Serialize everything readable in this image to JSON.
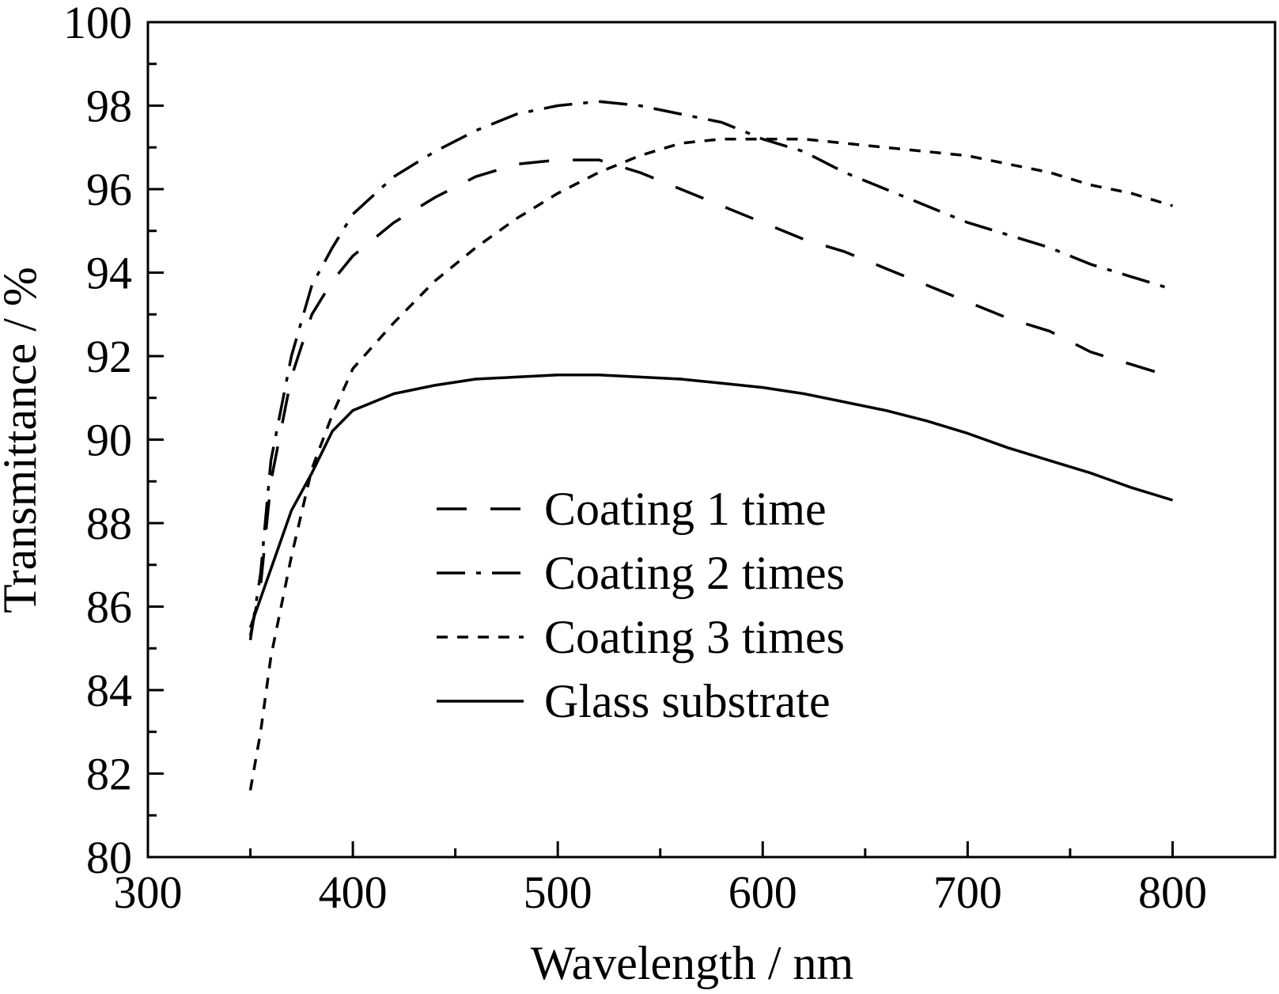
{
  "chart_data": {
    "type": "line",
    "title": "",
    "xlabel": "Wavelength / nm",
    "ylabel": "Transmittance / %",
    "xlim": [
      300,
      850
    ],
    "ylim": [
      80,
      100
    ],
    "x_ticks": [
      300,
      400,
      500,
      600,
      700,
      800
    ],
    "y_ticks": [
      80,
      82,
      84,
      86,
      88,
      90,
      92,
      94,
      96,
      98,
      100
    ],
    "grid": false,
    "legend_position": "center",
    "series": [
      {
        "name": "Coating 1 time",
        "dash": "long-dash",
        "points": [
          [
            350,
            85.3
          ],
          [
            355,
            86.5
          ],
          [
            360,
            89.0
          ],
          [
            370,
            91.5
          ],
          [
            380,
            93.0
          ],
          [
            390,
            93.8
          ],
          [
            400,
            94.4
          ],
          [
            420,
            95.2
          ],
          [
            440,
            95.8
          ],
          [
            460,
            96.3
          ],
          [
            480,
            96.6
          ],
          [
            500,
            96.7
          ],
          [
            520,
            96.7
          ],
          [
            540,
            96.4
          ],
          [
            560,
            96.0
          ],
          [
            580,
            95.6
          ],
          [
            600,
            95.2
          ],
          [
            620,
            94.8
          ],
          [
            640,
            94.5
          ],
          [
            660,
            94.1
          ],
          [
            680,
            93.7
          ],
          [
            700,
            93.3
          ],
          [
            720,
            92.9
          ],
          [
            740,
            92.6
          ],
          [
            760,
            92.1
          ],
          [
            780,
            91.8
          ],
          [
            800,
            91.5
          ]
        ]
      },
      {
        "name": "Coating 2 times",
        "dash": "dash-dot",
        "points": [
          [
            350,
            85.2
          ],
          [
            355,
            86.8
          ],
          [
            360,
            89.5
          ],
          [
            370,
            92.0
          ],
          [
            380,
            93.7
          ],
          [
            390,
            94.6
          ],
          [
            400,
            95.4
          ],
          [
            420,
            96.3
          ],
          [
            440,
            96.9
          ],
          [
            460,
            97.4
          ],
          [
            480,
            97.8
          ],
          [
            500,
            98.0
          ],
          [
            520,
            98.1
          ],
          [
            540,
            98.0
          ],
          [
            560,
            97.8
          ],
          [
            580,
            97.6
          ],
          [
            600,
            97.2
          ],
          [
            620,
            96.9
          ],
          [
            640,
            96.4
          ],
          [
            660,
            96.0
          ],
          [
            680,
            95.6
          ],
          [
            700,
            95.2
          ],
          [
            720,
            94.9
          ],
          [
            740,
            94.6
          ],
          [
            760,
            94.2
          ],
          [
            780,
            93.9
          ],
          [
            800,
            93.6
          ]
        ]
      },
      {
        "name": "Coating 3 times",
        "dash": "short-dash",
        "points": [
          [
            350,
            81.6
          ],
          [
            355,
            83.0
          ],
          [
            360,
            84.8
          ],
          [
            370,
            87.2
          ],
          [
            380,
            89.3
          ],
          [
            390,
            90.6
          ],
          [
            400,
            91.7
          ],
          [
            420,
            92.8
          ],
          [
            440,
            93.8
          ],
          [
            460,
            94.6
          ],
          [
            480,
            95.3
          ],
          [
            500,
            95.9
          ],
          [
            520,
            96.4
          ],
          [
            540,
            96.8
          ],
          [
            560,
            97.1
          ],
          [
            580,
            97.2
          ],
          [
            600,
            97.2
          ],
          [
            620,
            97.2
          ],
          [
            640,
            97.1
          ],
          [
            660,
            97.0
          ],
          [
            680,
            96.9
          ],
          [
            700,
            96.8
          ],
          [
            720,
            96.6
          ],
          [
            740,
            96.4
          ],
          [
            760,
            96.1
          ],
          [
            780,
            95.9
          ],
          [
            800,
            95.6
          ]
        ]
      },
      {
        "name": "Glass substrate",
        "dash": "solid",
        "points": [
          [
            350,
            85.5
          ],
          [
            360,
            86.9
          ],
          [
            370,
            88.3
          ],
          [
            380,
            89.2
          ],
          [
            390,
            90.2
          ],
          [
            400,
            90.7
          ],
          [
            420,
            91.1
          ],
          [
            440,
            91.3
          ],
          [
            460,
            91.45
          ],
          [
            480,
            91.5
          ],
          [
            500,
            91.55
          ],
          [
            520,
            91.55
          ],
          [
            540,
            91.5
          ],
          [
            560,
            91.45
          ],
          [
            580,
            91.35
          ],
          [
            600,
            91.25
          ],
          [
            620,
            91.1
          ],
          [
            640,
            90.9
          ],
          [
            660,
            90.7
          ],
          [
            680,
            90.45
          ],
          [
            700,
            90.15
          ],
          [
            720,
            89.8
          ],
          [
            740,
            89.5
          ],
          [
            760,
            89.2
          ],
          [
            780,
            88.85
          ],
          [
            800,
            88.55
          ]
        ]
      }
    ]
  }
}
